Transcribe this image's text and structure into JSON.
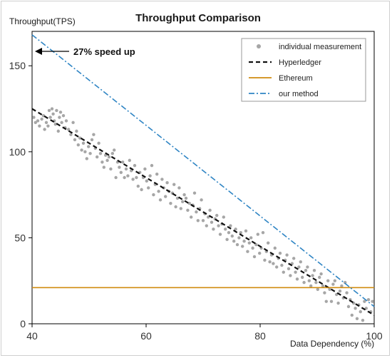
{
  "chart_data": {
    "type": "scatter",
    "title": "Throughput Comparison",
    "xlabel": "Data Dependency (%)",
    "ylabel": "Throughput(TPS)",
    "xlim": [
      40,
      100
    ],
    "ylim": [
      0,
      170
    ],
    "x_ticks": [
      40,
      60,
      80,
      100
    ],
    "y_ticks": [
      0,
      50,
      100,
      150
    ],
    "grid": false,
    "legend_position": "top-right",
    "annotation": {
      "text": "27% speed up",
      "x": 40,
      "y": 168
    },
    "series": [
      {
        "name": "individual measurement",
        "kind": "scatter",
        "color": "#a6a6a6",
        "points": [
          [
            40.3,
            120
          ],
          [
            40.6,
            117
          ],
          [
            41.0,
            118
          ],
          [
            41.3,
            115
          ],
          [
            41.7,
            119
          ],
          [
            42.0,
            121
          ],
          [
            42.2,
            113
          ],
          [
            42.5,
            117
          ],
          [
            42.8,
            115
          ],
          [
            43.0,
            124
          ],
          [
            43.2,
            120
          ],
          [
            43.5,
            125
          ],
          [
            43.7,
            122
          ],
          [
            43.9,
            118
          ],
          [
            44.1,
            116
          ],
          [
            44.3,
            124
          ],
          [
            44.6,
            112
          ],
          [
            44.8,
            120
          ],
          [
            45.0,
            123
          ],
          [
            45.2,
            117
          ],
          [
            45.5,
            121
          ],
          [
            45.8,
            114
          ],
          [
            46.0,
            118
          ],
          [
            46.4,
            113
          ],
          [
            46.8,
            110
          ],
          [
            47.2,
            117
          ],
          [
            47.5,
            107
          ],
          [
            47.8,
            112
          ],
          [
            48.1,
            104
          ],
          [
            48.4,
            108
          ],
          [
            48.7,
            101
          ],
          [
            49.0,
            105
          ],
          [
            49.3,
            100
          ],
          [
            49.6,
            96
          ],
          [
            49.9,
            103
          ],
          [
            50.2,
            99
          ],
          [
            50.5,
            107
          ],
          [
            50.8,
            110
          ],
          [
            51.1,
            102
          ],
          [
            51.4,
            97
          ],
          [
            51.7,
            105
          ],
          [
            52.0,
            99
          ],
          [
            52.3,
            94
          ],
          [
            52.6,
            91
          ],
          [
            52.9,
            98
          ],
          [
            53.2,
            95
          ],
          [
            53.5,
            97
          ],
          [
            53.8,
            90
          ],
          [
            54.1,
            99
          ],
          [
            54.4,
            101
          ],
          [
            54.7,
            85
          ],
          [
            55.0,
            94
          ],
          [
            55.3,
            91
          ],
          [
            55.6,
            88
          ],
          [
            55.9,
            94
          ],
          [
            56.2,
            85
          ],
          [
            56.5,
            90
          ],
          [
            56.8,
            86
          ],
          [
            57.1,
            95
          ],
          [
            57.4,
            89
          ],
          [
            57.7,
            84
          ],
          [
            58.0,
            92
          ],
          [
            58.3,
            85
          ],
          [
            58.6,
            80
          ],
          [
            58.9,
            88
          ],
          [
            59.2,
            78
          ],
          [
            59.5,
            85
          ],
          [
            59.8,
            90
          ],
          [
            60.1,
            83
          ],
          [
            60.4,
            79
          ],
          [
            60.7,
            86
          ],
          [
            61.0,
            92
          ],
          [
            61.3,
            75
          ],
          [
            61.6,
            81
          ],
          [
            61.9,
            87
          ],
          [
            62.2,
            77
          ],
          [
            62.5,
            72
          ],
          [
            62.8,
            84
          ],
          [
            63.1,
            79
          ],
          [
            63.4,
            74
          ],
          [
            63.7,
            82
          ],
          [
            64.0,
            77
          ],
          [
            64.3,
            70
          ],
          [
            64.6,
            76
          ],
          [
            64.9,
            81
          ],
          [
            65.2,
            68
          ],
          [
            65.5,
            73
          ],
          [
            65.8,
            79
          ],
          [
            66.1,
            67
          ],
          [
            66.4,
            71
          ],
          [
            66.7,
            75
          ],
          [
            67.0,
            73
          ],
          [
            67.3,
            66
          ],
          [
            67.6,
            70
          ],
          [
            67.9,
            62
          ],
          [
            68.2,
            69
          ],
          [
            68.5,
            76
          ],
          [
            68.8,
            65
          ],
          [
            69.1,
            60
          ],
          [
            69.4,
            67
          ],
          [
            69.7,
            72
          ],
          [
            70.0,
            60
          ],
          [
            70.3,
            64
          ],
          [
            70.6,
            57
          ],
          [
            70.9,
            62
          ],
          [
            71.2,
            66
          ],
          [
            71.5,
            59
          ],
          [
            71.8,
            55
          ],
          [
            72.1,
            61
          ],
          [
            72.4,
            63
          ],
          [
            72.7,
            57
          ],
          [
            73.0,
            52
          ],
          [
            73.3,
            58
          ],
          [
            73.6,
            62
          ],
          [
            73.9,
            55
          ],
          [
            74.2,
            49
          ],
          [
            74.5,
            53
          ],
          [
            74.8,
            57
          ],
          [
            75.1,
            51
          ],
          [
            75.4,
            48
          ],
          [
            75.7,
            55
          ],
          [
            76.0,
            46
          ],
          [
            76.3,
            50
          ],
          [
            76.6,
            53
          ],
          [
            76.9,
            45
          ],
          [
            77.2,
            48
          ],
          [
            77.5,
            54
          ],
          [
            77.8,
            42
          ],
          [
            78.1,
            47
          ],
          [
            78.4,
            50
          ],
          [
            78.7,
            44
          ],
          [
            79.0,
            39
          ],
          [
            79.3,
            46
          ],
          [
            79.6,
            52
          ],
          [
            79.9,
            41
          ],
          [
            80.2,
            44
          ],
          [
            80.5,
            53
          ],
          [
            80.8,
            37
          ],
          [
            81.1,
            42
          ],
          [
            81.4,
            47
          ],
          [
            81.7,
            36
          ],
          [
            82.0,
            40
          ],
          [
            82.3,
            35
          ],
          [
            82.6,
            44
          ],
          [
            82.9,
            33
          ],
          [
            83.2,
            38
          ],
          [
            83.5,
            41
          ],
          [
            83.8,
            34
          ],
          [
            84.1,
            30
          ],
          [
            84.4,
            37
          ],
          [
            84.7,
            40
          ],
          [
            85.0,
            32
          ],
          [
            85.3,
            28
          ],
          [
            85.6,
            35
          ],
          [
            85.9,
            38
          ],
          [
            86.2,
            30
          ],
          [
            86.5,
            26
          ],
          [
            86.8,
            33
          ],
          [
            87.1,
            36
          ],
          [
            87.4,
            27
          ],
          [
            87.7,
            24
          ],
          [
            88.0,
            31
          ],
          [
            88.3,
            33
          ],
          [
            88.6,
            25
          ],
          [
            88.9,
            22
          ],
          [
            89.2,
            28
          ],
          [
            89.5,
            31
          ],
          [
            89.8,
            24
          ],
          [
            90.1,
            20
          ],
          [
            90.4,
            27
          ],
          [
            90.7,
            29
          ],
          [
            91.0,
            22
          ],
          [
            91.3,
            18
          ],
          [
            91.6,
            13
          ],
          [
            91.9,
            25
          ],
          [
            92.2,
            20
          ],
          [
            92.5,
            13
          ],
          [
            92.8,
            23
          ],
          [
            93.1,
            25
          ],
          [
            93.4,
            17
          ],
          [
            93.7,
            12
          ],
          [
            94.0,
            19
          ],
          [
            94.3,
            22
          ],
          [
            94.6,
            15
          ],
          [
            94.9,
            24
          ],
          [
            95.2,
            18
          ],
          [
            95.5,
            10
          ],
          [
            95.8,
            14
          ],
          [
            96.1,
            5
          ],
          [
            96.4,
            12
          ],
          [
            96.7,
            9
          ],
          [
            97.0,
            3
          ],
          [
            97.3,
            11
          ],
          [
            97.6,
            7
          ],
          [
            98.0,
            2
          ],
          [
            98.3,
            13
          ],
          [
            98.6,
            9
          ],
          [
            99.0,
            14
          ],
          [
            99.4,
            7
          ],
          [
            99.7,
            13
          ]
        ]
      },
      {
        "name": "Hyperledger",
        "kind": "line",
        "style": "dashed",
        "color": "#111111",
        "points": [
          [
            40,
            125
          ],
          [
            100,
            5
          ]
        ]
      },
      {
        "name": "Ethereum",
        "kind": "line",
        "style": "solid",
        "color": "#d08c10",
        "points": [
          [
            40,
            21
          ],
          [
            100,
            21
          ]
        ]
      },
      {
        "name": "our method",
        "kind": "line",
        "style": "dashdot",
        "color": "#2f85c4",
        "points": [
          [
            40,
            168
          ],
          [
            100,
            10
          ]
        ]
      }
    ]
  }
}
